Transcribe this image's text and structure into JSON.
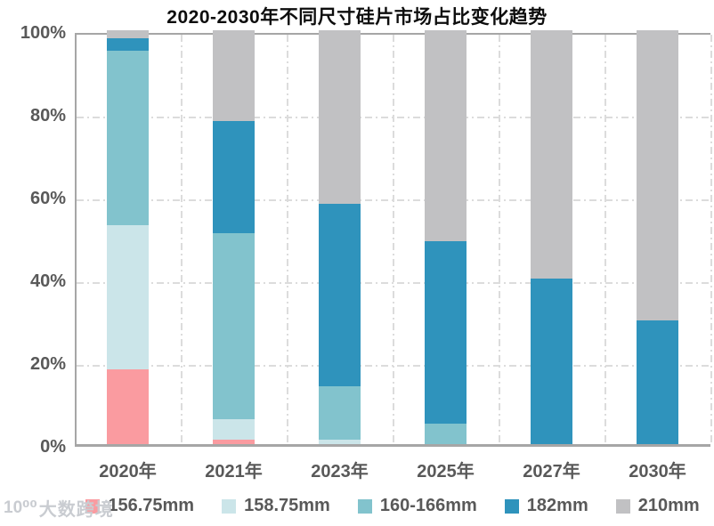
{
  "title": "2020-2030年不同尺寸硅片市场占比变化趋势",
  "watermark": {
    "logo": "10⁰⁰",
    "text": "大数跨境"
  },
  "chart_data": {
    "type": "bar",
    "stacked": true,
    "title": "2020-2030年不同尺寸硅片市场占比变化趋势",
    "categories": [
      "2020年",
      "2021年",
      "2023年",
      "2025年",
      "2027年",
      "2030年"
    ],
    "series": [
      {
        "name": "156.75mm",
        "color": "#FA9BA0",
        "values": [
          18,
          1,
          0,
          0,
          0,
          0
        ]
      },
      {
        "name": "158.75mm",
        "color": "#CBE5E9",
        "values": [
          35,
          5,
          1,
          0,
          0,
          0
        ]
      },
      {
        "name": "160-166mm",
        "color": "#82C3CD",
        "values": [
          42,
          45,
          13,
          5,
          0,
          0
        ]
      },
      {
        "name": "182mm",
        "color": "#2F93BC",
        "values": [
          3,
          27,
          44,
          44,
          40,
          30
        ]
      },
      {
        "name": "210mm",
        "color": "#C1C1C3",
        "values": [
          2,
          22,
          42,
          51,
          60,
          70
        ]
      }
    ],
    "xlabel": "",
    "ylabel": "",
    "ylim": [
      0,
      100
    ],
    "y_ticks": [
      "100%",
      "80%",
      "60%",
      "40%",
      "20%",
      "0%"
    ],
    "grid": {
      "horizontal_percents": [
        20,
        40,
        60,
        80
      ],
      "vertical_category_boundaries": true,
      "style": "dash-dot"
    },
    "legend_position": "bottom"
  },
  "colors": {
    "axis_text": "#595959",
    "title_text": "#0d0d0d",
    "grid_line": "#dcdcdc",
    "axis_line": "#a6a6a6",
    "watermark": "#c9ccd1",
    "background": "#ffffff"
  }
}
